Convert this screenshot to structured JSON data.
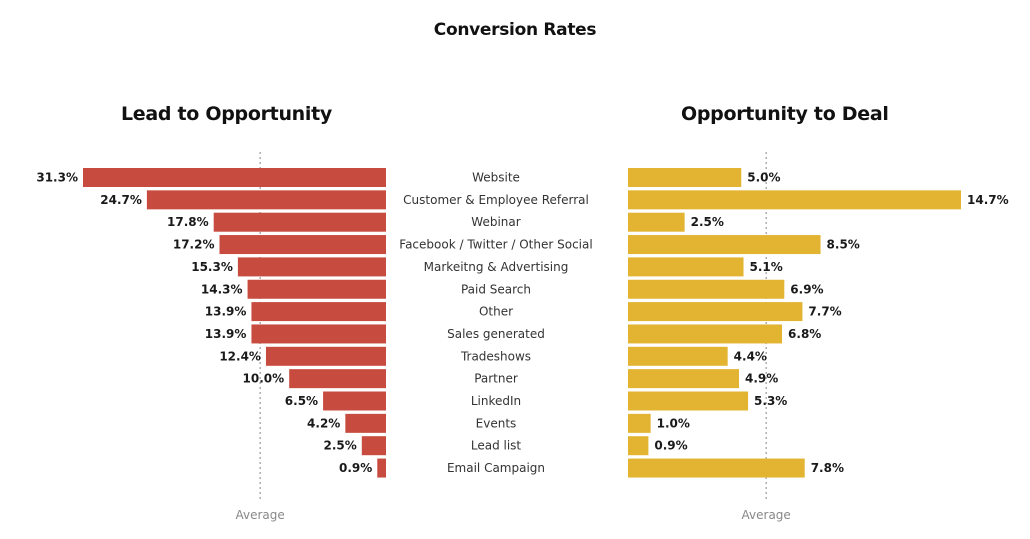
{
  "chart_data": [
    {
      "type": "bar",
      "orientation": "horizontal",
      "direction": "right-to-left",
      "title": "Lead to Opportunity",
      "categories": [
        "Website",
        "Customer & Employee Referral",
        "Webinar",
        "Facebook / Twitter / Other Social",
        "Markeitng & Advertising",
        "Paid Search",
        "Other",
        "Sales generated",
        "Tradeshows",
        "Partner",
        "LinkedIn",
        "Events",
        "Lead list",
        "Email Campaign"
      ],
      "values": [
        31.3,
        24.7,
        17.8,
        17.2,
        15.3,
        14.3,
        13.9,
        13.9,
        12.4,
        10.0,
        6.5,
        4.2,
        2.5,
        0.9
      ],
      "value_labels": [
        "31.3%",
        "24.7%",
        "17.8%",
        "17.2%",
        "15.3%",
        "14.3%",
        "13.9%",
        "13.9%",
        "12.4%",
        "10.0%",
        "6.5%",
        "4.2%",
        "2.5%",
        "0.9%"
      ],
      "unit": "%",
      "reference_line": {
        "label": "Average",
        "value": 13.0
      },
      "color": "#c84b40",
      "xlim": [
        0,
        31.3
      ],
      "grid": false
    },
    {
      "type": "bar",
      "orientation": "horizontal",
      "direction": "left-to-right",
      "title": "Opportunity to Deal",
      "categories": [
        "Website",
        "Customer & Employee Referral",
        "Webinar",
        "Facebook / Twitter / Other Social",
        "Markeitng & Advertising",
        "Paid Search",
        "Other",
        "Sales generated",
        "Tradeshows",
        "Partner",
        "LinkedIn",
        "Events",
        "Lead list",
        "Email Campaign"
      ],
      "values": [
        5.0,
        14.7,
        2.5,
        8.5,
        5.1,
        6.9,
        7.7,
        6.8,
        4.4,
        4.9,
        5.3,
        1.0,
        0.9,
        7.8
      ],
      "value_labels": [
        "5.0%",
        "14.7%",
        "2.5%",
        "8.5%",
        "5.1%",
        "6.9%",
        "7.7%",
        "6.8%",
        "4.4%",
        "4.9%",
        "5.3%",
        "1.0%",
        "0.9%",
        "7.8%"
      ],
      "unit": "%",
      "reference_line": {
        "label": "Average",
        "value": 6.1
      },
      "color": "#e2b431",
      "xlim": [
        0,
        14.7
      ],
      "grid": false
    }
  ],
  "page": {
    "title": "Conversion Rates",
    "left_subtitle": "Lead to Opportunity",
    "right_subtitle": "Opportunity to Deal"
  }
}
